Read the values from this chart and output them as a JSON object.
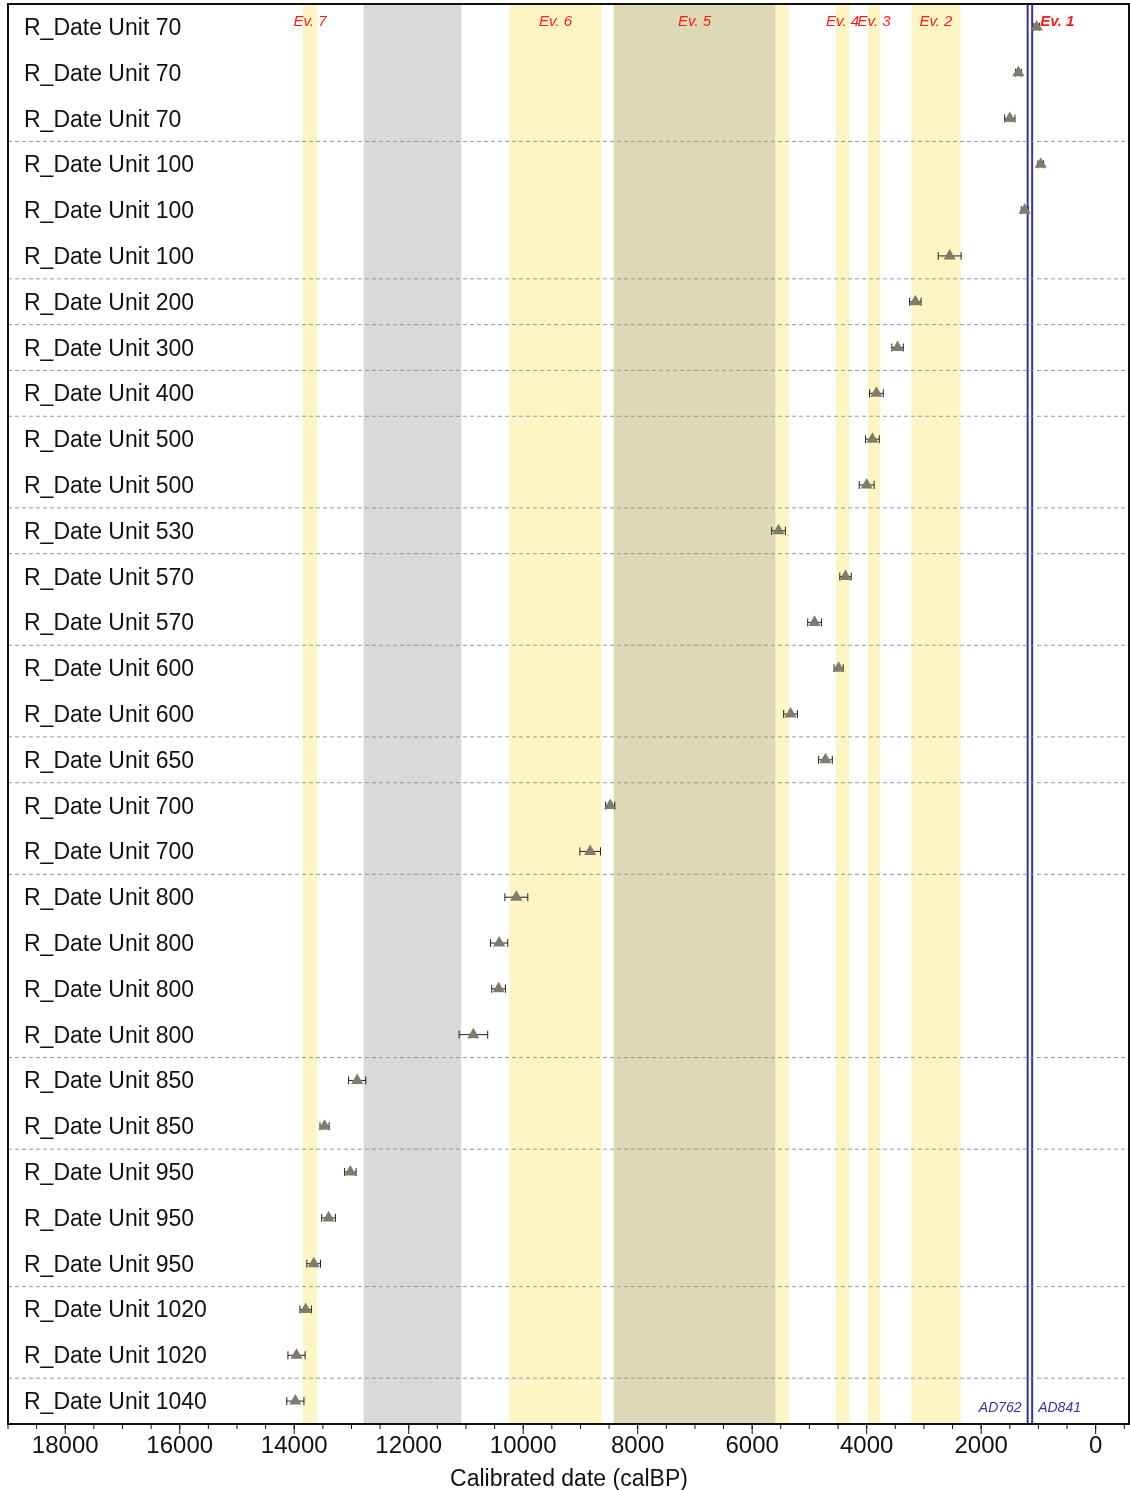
{
  "chart_data": {
    "type": "scatter",
    "orientation": "horizontal",
    "xlabel": "Calibrated date (calBP)",
    "marker": "triangle",
    "categories": [
      "R_Date Unit 70",
      "R_Date Unit 70",
      "R_Date Unit 70",
      "R_Date Unit 100",
      "R_Date Unit 100",
      "R_Date Unit 100",
      "R_Date Unit 200",
      "R_Date Unit 300",
      "R_Date Unit 400",
      "R_Date Unit 500",
      "R_Date Unit 500",
      "R_Date Unit 530",
      "R_Date Unit 570",
      "R_Date Unit 570",
      "R_Date Unit 600",
      "R_Date Unit 600",
      "R_Date Unit 650",
      "R_Date Unit 700",
      "R_Date Unit 700",
      "R_Date Unit 800",
      "R_Date Unit 800",
      "R_Date Unit 800",
      "R_Date Unit 800",
      "R_Date Unit 850",
      "R_Date Unit 850",
      "R_Date Unit 950",
      "R_Date Unit 950",
      "R_Date Unit 950",
      "R_Date Unit 1020",
      "R_Date Unit 1020",
      "R_Date Unit 1040"
    ],
    "series": [
      {
        "color": "#7f7c6c",
        "values": [
          1030,
          1350,
          1500,
          960,
          1240,
          2550,
          3150,
          3460,
          3830,
          3900,
          4000,
          5540,
          4370,
          4910,
          4490,
          5330,
          4720,
          8480,
          8830,
          10120,
          10420,
          10430,
          10870,
          12900,
          13470,
          13020,
          13400,
          13660,
          13800,
          13960,
          13980
        ],
        "errors": [
          50,
          50,
          90,
          50,
          60,
          200,
          100,
          100,
          120,
          120,
          130,
          120,
          100,
          120,
          80,
          120,
          120,
          80,
          180,
          200,
          150,
          120,
          250,
          150,
          80,
          100,
          120,
          120,
          100,
          150,
          150
        ]
      }
    ],
    "xlim": [
      19000,
      -600
    ],
    "xticks": [
      18000,
      16000,
      14000,
      12000,
      10000,
      8000,
      6000,
      4000,
      2000,
      0
    ],
    "bands": [
      {
        "axis": "x",
        "from": 13850,
        "to": 13600,
        "label": "Ev. 7",
        "color": "#fdf5c4"
      },
      {
        "axis": "x",
        "from": 12790,
        "to": 11080,
        "color": "#d9d9d9"
      },
      {
        "axis": "x",
        "from": 10240,
        "to": 8630,
        "label": "Ev. 6",
        "color": "#fdf5c4"
      },
      {
        "axis": "x",
        "from": 8420,
        "to": 5590,
        "label": "Ev. 5",
        "color": "#ddd8b5"
      },
      {
        "axis": "x",
        "from": 5590,
        "to": 5350,
        "color": "#fdf5c4"
      },
      {
        "axis": "x",
        "from": 4540,
        "to": 4300,
        "label": "Ev. 4",
        "color": "#fdf5c4"
      },
      {
        "axis": "x",
        "from": 3980,
        "to": 3760,
        "label": "Ev. 3",
        "color": "#fdf5c4"
      },
      {
        "axis": "x",
        "from": 3220,
        "to": 2360,
        "label": "Ev. 2",
        "color": "#fdf5c4"
      }
    ],
    "ref_lines": [
      {
        "axis": "x",
        "value": 1188,
        "label": "AD762",
        "color": "#3333aa"
      },
      {
        "axis": "x",
        "value": 1109,
        "label": "AD841",
        "color": "#3333aa"
      }
    ],
    "annotations": [
      "Ev. 1"
    ]
  }
}
